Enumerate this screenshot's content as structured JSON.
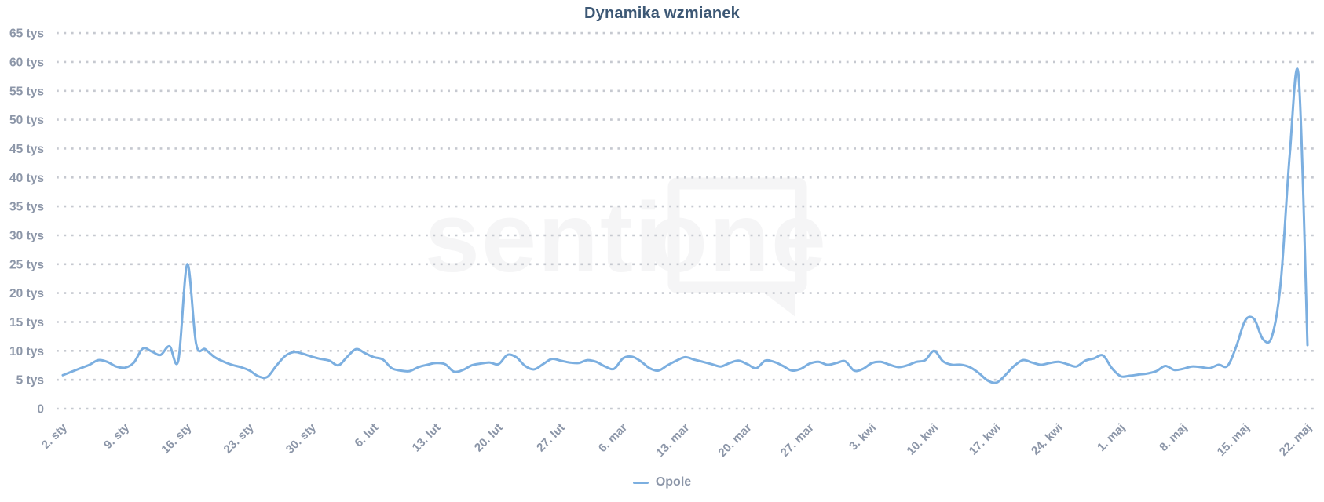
{
  "watermark": {
    "text_left": "senti",
    "text_right": "one"
  },
  "theme": {
    "line": "#7cafe0",
    "title_text": "#3d5875",
    "axis_text": "#8c96a8",
    "grid": "#c6c9d0",
    "watermark": "#f5f5f6",
    "background": "#ffffff"
  },
  "chart_data": {
    "type": "line",
    "title": "Dynamika wzmianek",
    "xlabel": "",
    "ylabel": "",
    "values_unit": "tys (thousands of mentions), daily points from 2 sty to 22 maj",
    "grid": "horizontal dotted",
    "legend_position": "bottom center",
    "ylim": [
      0,
      67
    ],
    "y_ticks": [
      0,
      5,
      10,
      15,
      20,
      25,
      30,
      35,
      40,
      45,
      50,
      55,
      60,
      65
    ],
    "y_tick_labels": [
      "0",
      "5 tys",
      "10 tys",
      "15 tys",
      "20 tys",
      "25 tys",
      "30 tys",
      "35 tys",
      "40 tys",
      "45 tys",
      "50 tys",
      "55 tys",
      "60 tys",
      "65 tys"
    ],
    "x_tick_labels": [
      "2. sty",
      "9. sty",
      "16. sty",
      "23. sty",
      "30. sty",
      "6. lut",
      "13. lut",
      "20. lut",
      "27. lut",
      "6. mar",
      "13. mar",
      "20. mar",
      "27. mar",
      "3. kwi",
      "10. kwi",
      "17. kwi",
      "24. kwi",
      "1. maj",
      "8. maj",
      "15. maj",
      "22. maj"
    ],
    "x_tick_indices": [
      0,
      7,
      14,
      21,
      28,
      35,
      42,
      49,
      56,
      63,
      70,
      77,
      84,
      91,
      98,
      105,
      112,
      119,
      126,
      133,
      140
    ],
    "series": [
      {
        "name": "Opole",
        "color": "#7cafe0",
        "values": [
          5.8,
          6.4,
          7.0,
          7.6,
          8.4,
          8.1,
          7.3,
          7.1,
          8.0,
          10.4,
          9.9,
          9.3,
          10.8,
          8.4,
          25.0,
          11.2,
          10.3,
          9.0,
          8.2,
          7.6,
          7.2,
          6.6,
          5.6,
          5.5,
          7.4,
          9.1,
          9.8,
          9.5,
          9.0,
          8.6,
          8.3,
          7.5,
          9.0,
          10.3,
          9.6,
          8.9,
          8.5,
          7.0,
          6.6,
          6.5,
          7.2,
          7.6,
          7.9,
          7.7,
          6.4,
          6.7,
          7.5,
          7.8,
          8.0,
          7.7,
          9.3,
          8.9,
          7.4,
          6.8,
          7.7,
          8.6,
          8.3,
          8.0,
          7.9,
          8.4,
          8.1,
          7.3,
          6.9,
          8.7,
          9.0,
          8.2,
          7.0,
          6.6,
          7.5,
          8.3,
          8.9,
          8.5,
          8.1,
          7.7,
          7.3,
          7.9,
          8.3,
          7.7,
          7.0,
          8.3,
          8.1,
          7.4,
          6.6,
          6.9,
          7.8,
          8.1,
          7.6,
          7.9,
          8.2,
          6.6,
          6.9,
          7.9,
          8.1,
          7.6,
          7.2,
          7.5,
          8.1,
          8.4,
          10.0,
          8.2,
          7.6,
          7.6,
          7.2,
          6.2,
          4.9,
          4.5,
          5.8,
          7.4,
          8.4,
          8.0,
          7.6,
          7.9,
          8.1,
          7.7,
          7.3,
          8.3,
          8.7,
          9.2,
          7.0,
          5.6,
          5.7,
          5.9,
          6.1,
          6.5,
          7.4,
          6.7,
          6.9,
          7.3,
          7.2,
          7.0,
          7.6,
          7.4,
          10.8,
          15.3,
          15.5,
          12.0,
          12.5,
          22.0,
          44.0,
          57.5,
          11.0
        ]
      }
    ]
  }
}
